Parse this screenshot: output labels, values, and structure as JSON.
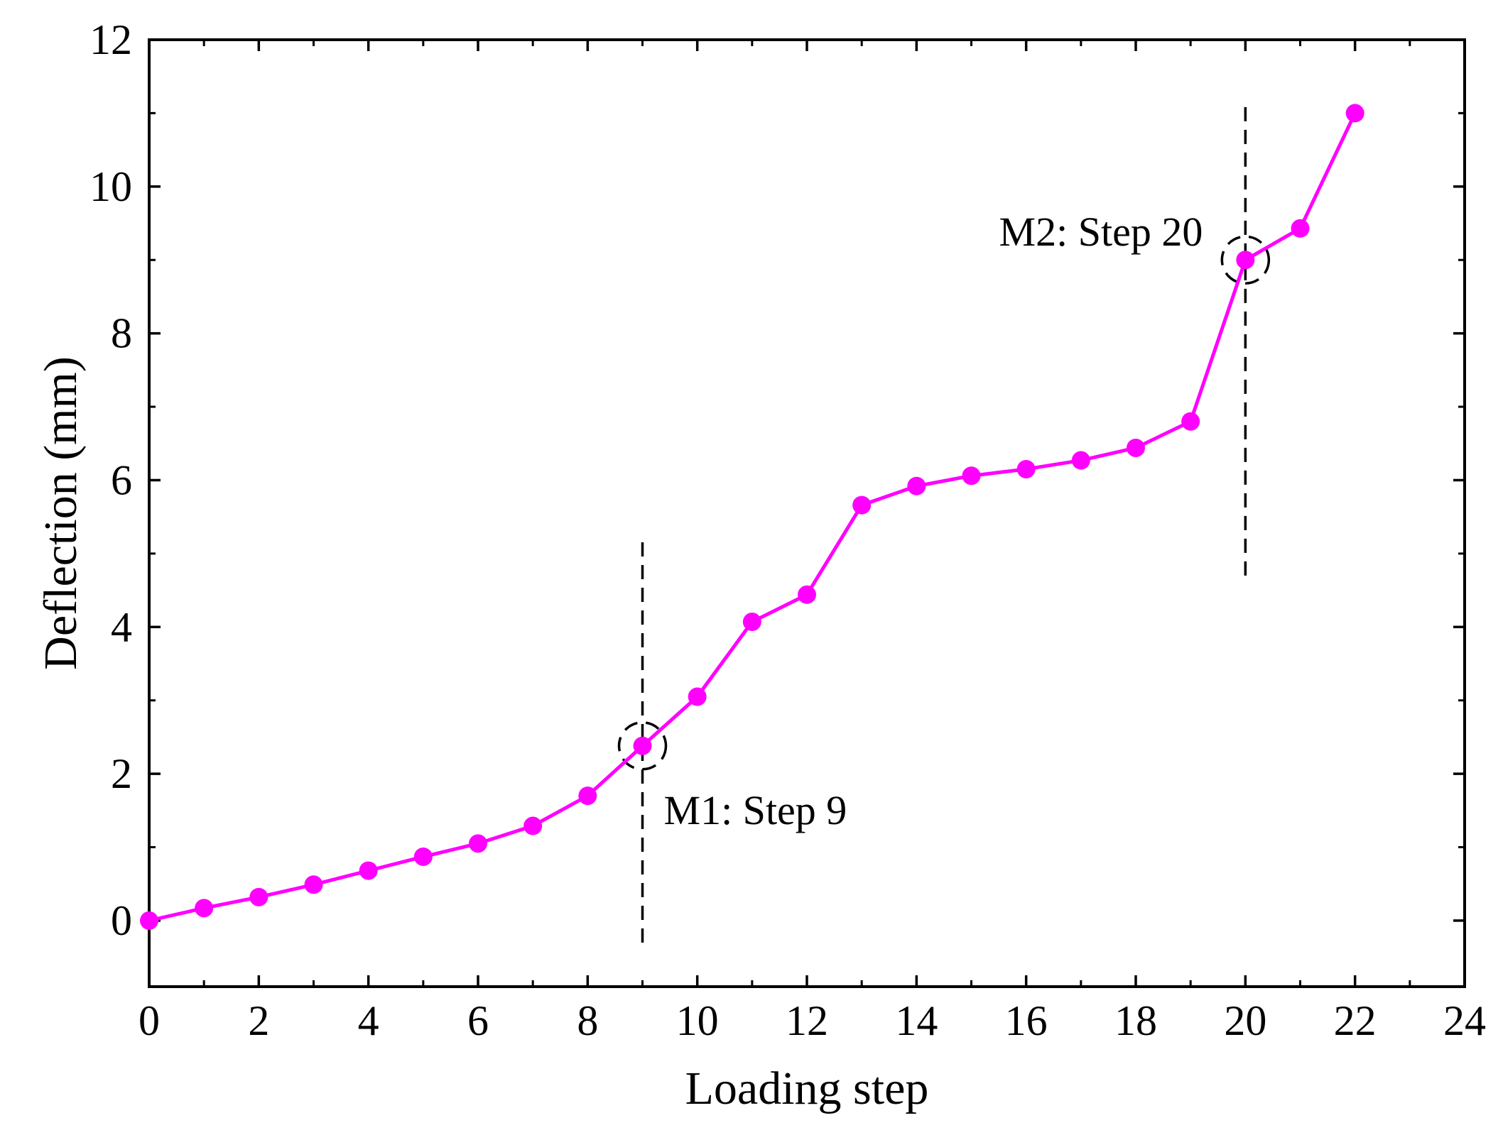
{
  "chart_data": {
    "type": "line",
    "xlabel": "Loading step",
    "ylabel": "Deflection (mm)",
    "xlim": [
      0,
      24
    ],
    "ylim": [
      -0.9,
      12
    ],
    "x_ticks": [
      0,
      2,
      4,
      6,
      8,
      10,
      12,
      14,
      16,
      18,
      20,
      22,
      24
    ],
    "y_ticks": [
      0,
      2,
      4,
      6,
      8,
      10,
      12
    ],
    "x_tick_labels": [
      "0",
      "2",
      "4",
      "6",
      "8",
      "10",
      "12",
      "14",
      "16",
      "18",
      "20",
      "22",
      "24"
    ],
    "y_tick_labels": [
      "0",
      "2",
      "4",
      "6",
      "8",
      "10",
      "12"
    ],
    "grid": false,
    "legend": "none",
    "series": [
      {
        "color": "#ff00ff",
        "x": [
          0,
          1,
          2,
          3,
          4,
          5,
          6,
          7,
          8,
          9,
          10,
          11,
          12,
          13,
          14,
          15,
          16,
          17,
          18,
          19,
          20,
          21,
          22
        ],
        "y": [
          0.0,
          0.17,
          0.32,
          0.49,
          0.68,
          0.87,
          1.05,
          1.29,
          1.7,
          2.38,
          3.05,
          4.07,
          4.44,
          5.66,
          5.92,
          6.06,
          6.15,
          6.27,
          6.44,
          6.8,
          9.0,
          9.43,
          11.0
        ]
      }
    ],
    "annotations": [
      {
        "text": "M1: Step 9",
        "x": 9,
        "y": 2.38,
        "line_y": [
          -0.3,
          5.2
        ]
      },
      {
        "text": "M2: Step 20",
        "x": 20,
        "y": 9.0,
        "line_y": [
          4.7,
          11.1
        ]
      }
    ]
  }
}
